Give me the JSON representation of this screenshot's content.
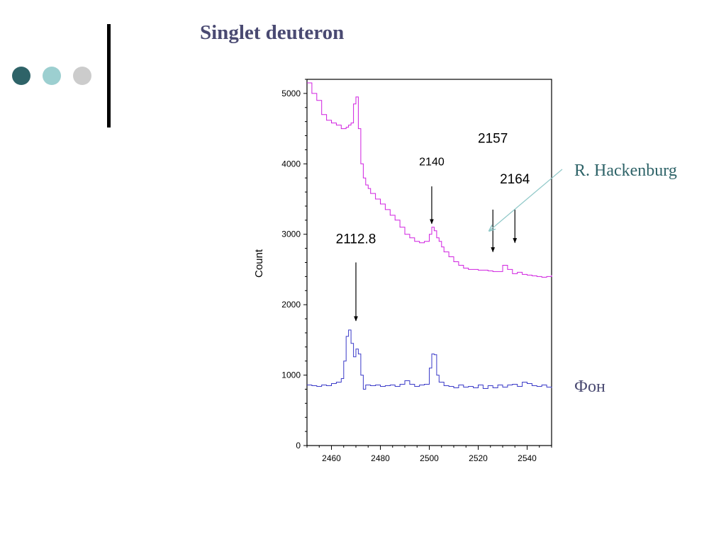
{
  "slide": {
    "title": "Singlet deuteron",
    "bullets": [
      {
        "name": "bullet-dot-dark",
        "color": "#2e6368"
      },
      {
        "name": "bullet-dot-light",
        "color": "#9ccfd0"
      },
      {
        "name": "bullet-dot-grey",
        "color": "#cccccc"
      }
    ]
  },
  "chart_data": {
    "type": "line",
    "xlabel": "",
    "ylabel": "Count",
    "xlim": [
      2450,
      2550
    ],
    "ylim": [
      0,
      5200
    ],
    "x_ticks": [
      2460,
      2480,
      2500,
      2520,
      2540
    ],
    "y_ticks": [
      0,
      1000,
      2000,
      3000,
      4000,
      5000
    ],
    "grid": false,
    "series": [
      {
        "color": "#d020e0",
        "step": true,
        "x": [
          2450,
          2452,
          2454,
          2456,
          2458,
          2460,
          2462,
          2464,
          2466,
          2467,
          2468,
          2469,
          2470,
          2471,
          2472,
          2473,
          2474,
          2475,
          2476,
          2478,
          2480,
          2482,
          2484,
          2486,
          2488,
          2490,
          2492,
          2494,
          2496,
          2498,
          2500,
          2501,
          2502,
          2503,
          2504,
          2505,
          2506,
          2508,
          2510,
          2512,
          2514,
          2516,
          2518,
          2520,
          2522,
          2524,
          2526,
          2528,
          2530,
          2532,
          2534,
          2536,
          2538,
          2540,
          2542,
          2544,
          2546,
          2548,
          2550
        ],
        "y": [
          5150,
          5000,
          4900,
          4700,
          4620,
          4580,
          4550,
          4500,
          4520,
          4550,
          4580,
          4850,
          4950,
          4500,
          4000,
          3800,
          3700,
          3650,
          3580,
          3500,
          3430,
          3350,
          3270,
          3200,
          3100,
          3000,
          2950,
          2900,
          2880,
          2900,
          3000,
          3100,
          3050,
          2950,
          2900,
          2820,
          2750,
          2680,
          2610,
          2560,
          2520,
          2500,
          2500,
          2490,
          2490,
          2480,
          2470,
          2470,
          2560,
          2500,
          2440,
          2460,
          2430,
          2420,
          2410,
          2400,
          2390,
          2400,
          2420
        ]
      },
      {
        "color": "#3a3ac8",
        "step": true,
        "x": [
          2450,
          2452,
          2454,
          2456,
          2458,
          2460,
          2462,
          2464,
          2465,
          2466,
          2467,
          2468,
          2469,
          2470,
          2471,
          2472,
          2473,
          2474,
          2476,
          2478,
          2480,
          2482,
          2484,
          2486,
          2488,
          2490,
          2492,
          2494,
          2496,
          2498,
          2500,
          2501,
          2502,
          2503,
          2504,
          2506,
          2508,
          2510,
          2512,
          2514,
          2516,
          2518,
          2520,
          2522,
          2524,
          2526,
          2528,
          2530,
          2532,
          2534,
          2536,
          2538,
          2540,
          2542,
          2544,
          2546,
          2548,
          2550
        ],
        "y": [
          860,
          850,
          840,
          860,
          850,
          880,
          900,
          950,
          1200,
          1550,
          1640,
          1450,
          1260,
          1370,
          1300,
          1000,
          800,
          860,
          850,
          860,
          840,
          850,
          860,
          840,
          870,
          920,
          870,
          840,
          860,
          870,
          1100,
          1300,
          1290,
          1000,
          900,
          850,
          840,
          820,
          860,
          830,
          840,
          820,
          860,
          810,
          850,
          820,
          860,
          830,
          860,
          870,
          840,
          900,
          880,
          850,
          840,
          860,
          830,
          820
        ]
      }
    ],
    "annotations": [
      {
        "text": "2112.8",
        "x": 2470,
        "y_text": 2870,
        "arrow_from": 2600,
        "arrow_to": 1770
      },
      {
        "text": "2140",
        "x": 2501,
        "y_text": 3980,
        "arrow_from": 3680,
        "arrow_to": 3150
      },
      {
        "text": "2157",
        "x": 2526,
        "y_text": 4300,
        "arrow_from": 3350,
        "arrow_to": 2750
      },
      {
        "text": "2164",
        "x": 2535,
        "y_text": 3720,
        "arrow_from": 3350,
        "arrow_to": 2880
      }
    ],
    "external_labels": [
      {
        "text": "R. Hackenburg",
        "color": "#2e6368"
      },
      {
        "text": "Фон",
        "color": "#4a4a72"
      }
    ]
  }
}
